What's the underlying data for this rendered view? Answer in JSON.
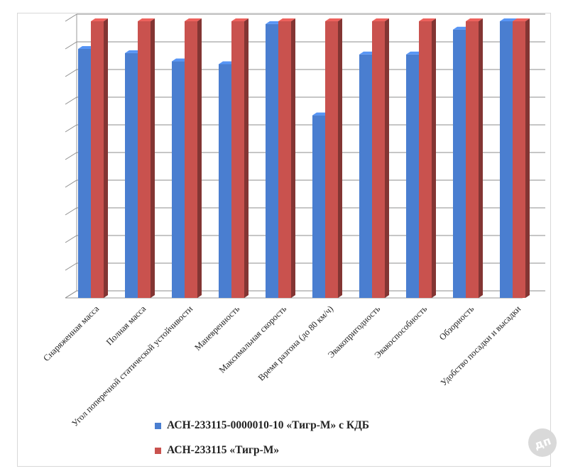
{
  "chart_data": {
    "type": "bar",
    "title": "",
    "xlabel": "",
    "ylabel": "",
    "ylim": [
      0,
      10
    ],
    "y_tick_labels_shown": false,
    "grid": true,
    "legend_position": "bottom",
    "style": "3d-clustered-columns",
    "categories": [
      "Снаряженная масса",
      "Полная масса",
      "Угол поперечной статической устойчивости",
      "Маневренность",
      "Максимальная скорость",
      "Время разгона (до 80 км/ч)",
      "Эвакопригодность",
      "Эвакоспособность",
      "Обзорность",
      "Удобство посадки и высадки"
    ],
    "series": [
      {
        "name": "АСН-233115-0000010-10 «Тигр-М» с КДБ",
        "color": "#4a7ed0",
        "values": [
          9.0,
          8.85,
          8.55,
          8.45,
          9.9,
          6.6,
          8.8,
          8.8,
          9.7,
          10.0
        ]
      },
      {
        "name": "АСН-233115 «Тигр-М»",
        "color": "#c9524e",
        "values": [
          10.0,
          10.0,
          10.0,
          10.0,
          10.0,
          10.0,
          10.0,
          10.0,
          10.0,
          10.0
        ]
      }
    ]
  },
  "legend": {
    "items": [
      {
        "label": "АСН-233115-0000010-10 «Тигр-М» с КДБ",
        "color": "#4a7ed0"
      },
      {
        "label": "АСН-233115 «Тигр-М»",
        "color": "#c9524e"
      }
    ]
  },
  "watermark": {
    "text": "дп"
  }
}
